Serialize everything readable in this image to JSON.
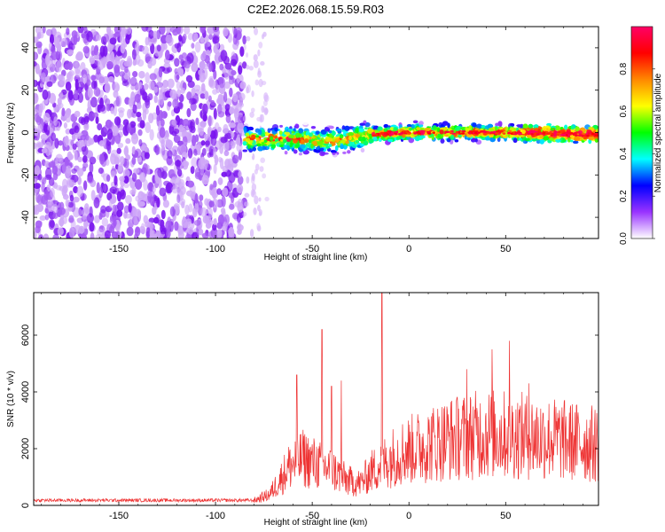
{
  "title": "C2E2.2026.068.15.59.R03",
  "chart_data": [
    {
      "type": "heatmap",
      "xlabel": "Height of straight line (km)",
      "ylabel": "Frequency (Hz)",
      "xlim": [
        -194,
        98
      ],
      "ylim": [
        -50,
        50
      ],
      "xticks": [
        "-150",
        "-100",
        "-50",
        "0",
        "50"
      ],
      "xtick_values": [
        -150,
        -100,
        -50,
        0,
        50
      ],
      "yticks": [
        "-40",
        "-20",
        "0",
        "20",
        "40"
      ],
      "ytick_values": [
        -40,
        -20,
        0,
        20,
        40
      ],
      "noise_region": [
        -194,
        -85
      ],
      "signal_region": [
        -85,
        98
      ],
      "signal_frequency_trend": [
        {
          "x": -85,
          "y": -3
        },
        {
          "x": -60,
          "y": -3
        },
        {
          "x": -40,
          "y": -4
        },
        {
          "x": -20,
          "y": -1
        },
        {
          "x": 0,
          "y": 0
        },
        {
          "x": 20,
          "y": 0
        },
        {
          "x": 50,
          "y": 0
        },
        {
          "x": 98,
          "y": -1
        }
      ],
      "colorbar": {
        "label": "Normalized spectral amplitude",
        "range": [
          0,
          1
        ],
        "ticks": [
          "0.0",
          "0.2",
          "0.4",
          "0.6",
          "0.8"
        ],
        "tick_values": [
          0,
          0.2,
          0.4,
          0.6,
          0.8
        ],
        "colors": [
          "#ffffff",
          "#9933ff",
          "#0000ff",
          "#00ffff",
          "#00ff00",
          "#ffff00",
          "#ff8800",
          "#ff0000",
          "#ff0066"
        ]
      }
    },
    {
      "type": "line",
      "xlabel": "Height of straight line (km)",
      "ylabel": "SNR (10 * v/v)",
      "xlim": [
        -194,
        98
      ],
      "ylim": [
        0,
        7500
      ],
      "xticks": [
        "-150",
        "-100",
        "-50",
        "0",
        "50"
      ],
      "xtick_values": [
        -150,
        -100,
        -50,
        0,
        50
      ],
      "yticks": [
        "0",
        "2000",
        "4000",
        "6000"
      ],
      "ytick_values": [
        0,
        2000,
        4000,
        6000
      ],
      "color": "#ee3333",
      "envelope": [
        {
          "x": -194,
          "y": 180
        },
        {
          "x": -80,
          "y": 180
        },
        {
          "x": -72,
          "y": 400
        },
        {
          "x": -62,
          "y": 1400
        },
        {
          "x": -55,
          "y": 1700
        },
        {
          "x": -48,
          "y": 1500
        },
        {
          "x": -40,
          "y": 1300
        },
        {
          "x": -32,
          "y": 900
        },
        {
          "x": -25,
          "y": 800
        },
        {
          "x": -20,
          "y": 1200
        },
        {
          "x": -12,
          "y": 1600
        },
        {
          "x": -5,
          "y": 1900
        },
        {
          "x": 5,
          "y": 2100
        },
        {
          "x": 20,
          "y": 2400
        },
        {
          "x": 40,
          "y": 2600
        },
        {
          "x": 60,
          "y": 2500
        },
        {
          "x": 75,
          "y": 2400
        },
        {
          "x": 85,
          "y": 2300
        },
        {
          "x": 98,
          "y": 2200
        }
      ],
      "peaks": [
        {
          "x": -58,
          "y": 4600
        },
        {
          "x": -45,
          "y": 6200
        },
        {
          "x": -40,
          "y": 4200
        },
        {
          "x": -35,
          "y": 4400
        },
        {
          "x": -14,
          "y": 7500
        },
        {
          "x": 30,
          "y": 4800
        },
        {
          "x": 43,
          "y": 5500
        },
        {
          "x": 52,
          "y": 5800
        },
        {
          "x": 62,
          "y": 4300
        }
      ]
    }
  ]
}
